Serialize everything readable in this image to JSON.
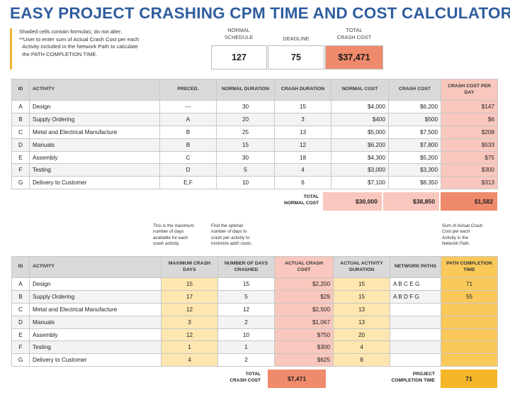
{
  "title": "EASY PROJECT CRASHING CPM TIME AND COST CALCULATOR",
  "notes": {
    "line1": "Shaded cells contain formulas; do not alter.",
    "line2": "**User to enter sum of Actual Crash Cost per each\n  Activity included in the Network Path to calculate\n  the PATH COMPLETION TIME."
  },
  "summary": {
    "normal_schedule_label": "NORMAL\nSCHEDULE",
    "deadline_label": "DEADLINE",
    "total_crash_cost_label": "TOTAL\nCRASH COST",
    "normal_schedule": "127",
    "deadline": "75",
    "total_crash_cost": "$37,471"
  },
  "table1": {
    "headers": [
      "ID",
      "ACTIVITY",
      "PRECED.",
      "NORMAL DURATION",
      "CRASH DURATION",
      "NORMAL COST",
      "CRASH COST",
      "CRASH COST PER DAY"
    ],
    "rows": [
      [
        "A",
        "Design",
        "---",
        "30",
        "15",
        "$4,000",
        "$6,200",
        "$147"
      ],
      [
        "B",
        "Supply Ordering",
        "A",
        "20",
        "3",
        "$400",
        "$500",
        "$6"
      ],
      [
        "C",
        "Metal and Electrical Manufacture",
        "B",
        "25",
        "13",
        "$5,000",
        "$7,500",
        "$208"
      ],
      [
        "D",
        "Manuals",
        "B",
        "15",
        "12",
        "$6,200",
        "$7,800",
        "$533"
      ],
      [
        "E",
        "Assembly",
        "C",
        "30",
        "18",
        "$4,300",
        "$5,200",
        "$75"
      ],
      [
        "F",
        "Testing",
        "D",
        "5",
        "4",
        "$3,000",
        "$3,300",
        "$300"
      ],
      [
        "G",
        "Delivery to Customer",
        "E,F",
        "10",
        "6",
        "$7,100",
        "$8,350",
        "$313"
      ]
    ],
    "total_label": "TOTAL\nNORMAL COST",
    "total_normal_cost": "$30,000",
    "total_crash_cost": "$38,850",
    "total_crash_per_day": "$1,582"
  },
  "annotations": {
    "max_days": "This is the maximum\nnumber of days\navailable for each\ncrash activity.",
    "days_crashed": "Find the optimal\nnumber of days to\ncrash per activity to\nminimize add'l costs.",
    "path_time": "Sum of Actual Crash\nCost per each\nActivity in the\nNetwork Path."
  },
  "table2": {
    "headers": [
      "ID",
      "ACTIVITY",
      "MAXIMUM CRASH DAYS",
      "NUMBER OF DAYS CRASHED",
      "ACTUAL CRASH COST",
      "ACTUAL ACTIVITY DURATION",
      "NETWORK PATHS",
      "PATH COMPLETION TIME"
    ],
    "rows": [
      [
        "A",
        "Design",
        "15",
        "15",
        "$2,200",
        "15",
        "A B C E G",
        "71"
      ],
      [
        "B",
        "Supply Ordering",
        "17",
        "5",
        "$29",
        "15",
        "A B D F G",
        "55"
      ],
      [
        "C",
        "Metal and Electrical Manufacture",
        "12",
        "12",
        "$2,500",
        "13",
        "",
        ""
      ],
      [
        "D",
        "Manuals",
        "3",
        "2",
        "$1,067",
        "13",
        "",
        ""
      ],
      [
        "E",
        "Assembly",
        "12",
        "10",
        "$750",
        "20",
        "",
        ""
      ],
      [
        "F",
        "Testing",
        "1",
        "1",
        "$300",
        "4",
        "",
        ""
      ],
      [
        "G",
        "Delivery to Customer",
        "4",
        "2",
        "$625",
        "8",
        "",
        ""
      ]
    ],
    "total_label": "TOTAL\nCRASH COST",
    "total_crash_cost": "$7,471",
    "completion_label": "PROJECT\nCOMPLETION TIME",
    "completion_time": "71"
  }
}
